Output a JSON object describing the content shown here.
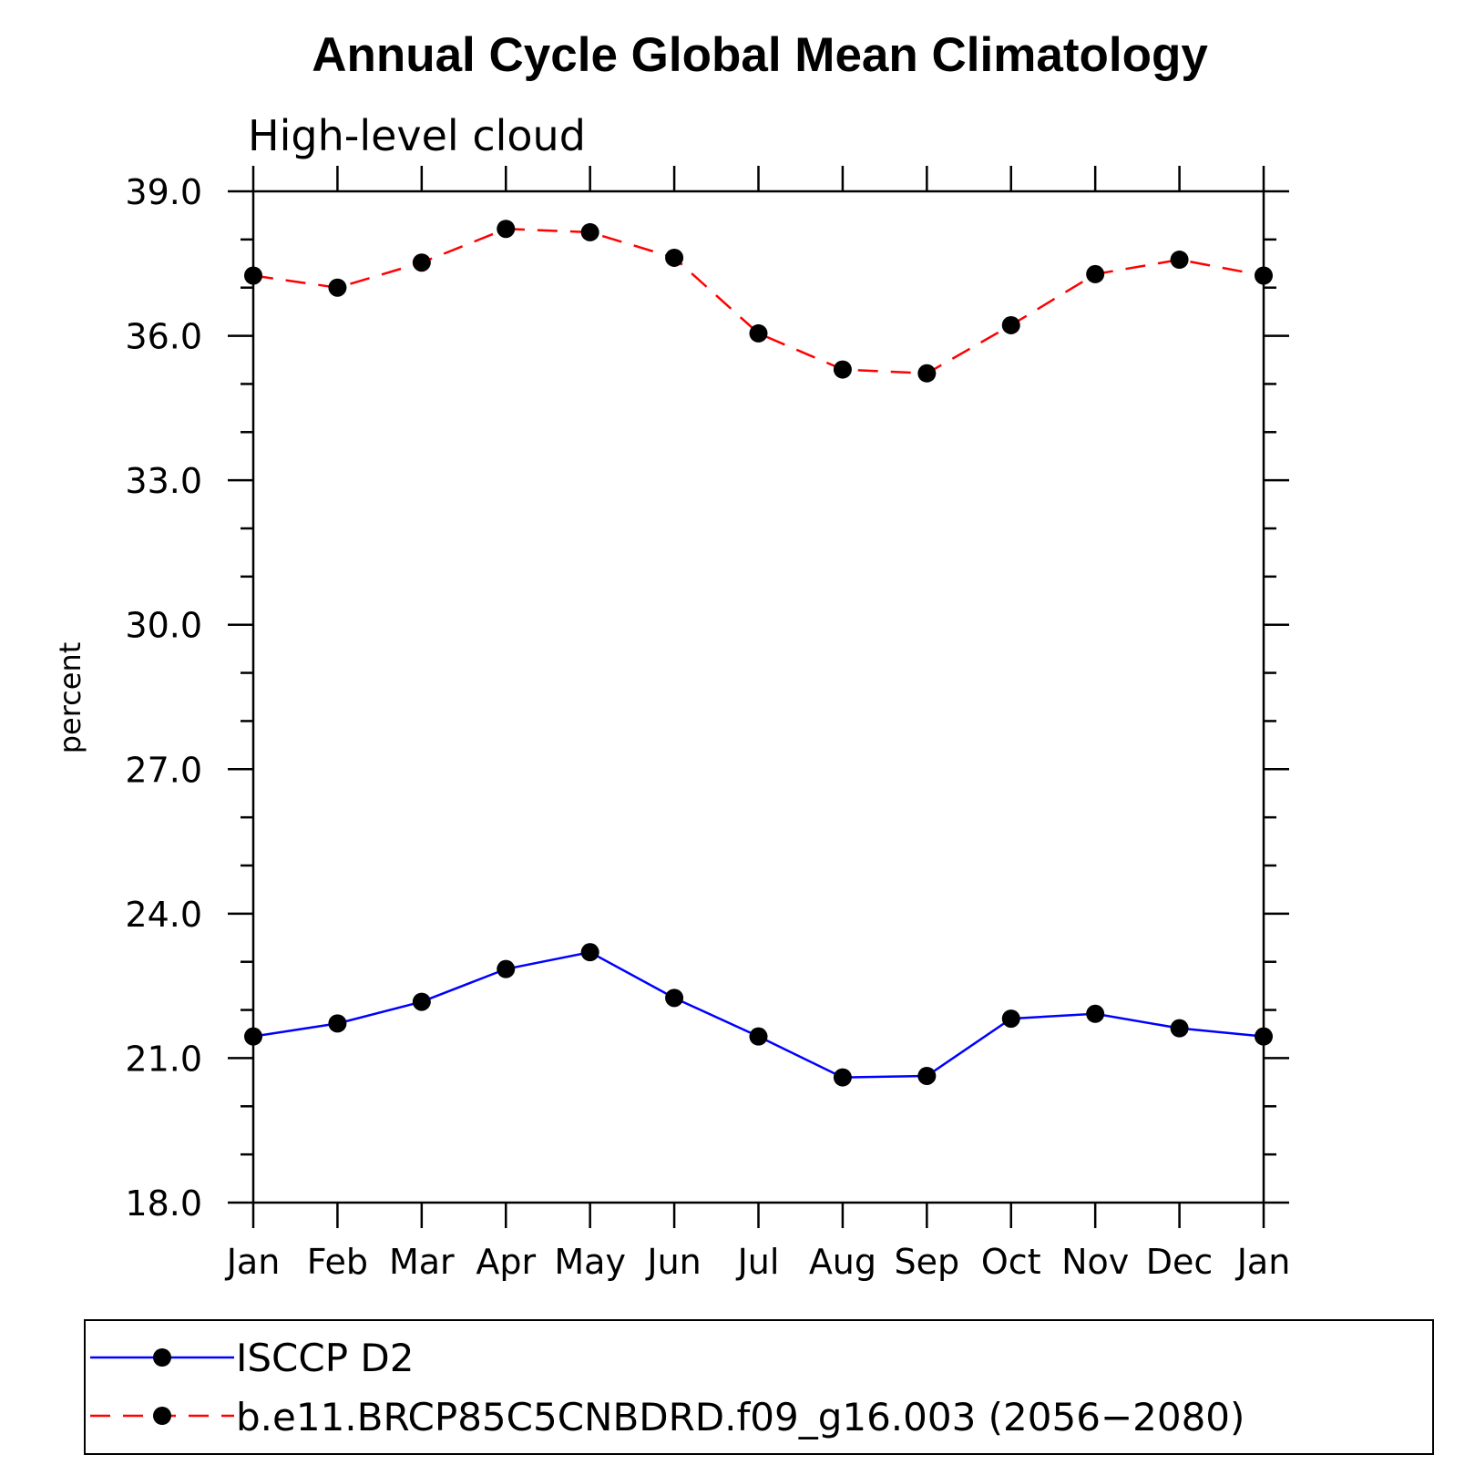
{
  "chart_data": {
    "type": "line",
    "title": "Annual Cycle Global Mean Climatology",
    "subtitle": "High-level cloud",
    "xlabel": "",
    "ylabel": "percent",
    "categories": [
      "Jan",
      "Feb",
      "Mar",
      "Apr",
      "May",
      "Jun",
      "Jul",
      "Aug",
      "Sep",
      "Oct",
      "Nov",
      "Dec",
      "Jan"
    ],
    "yticks": [
      "18.0",
      "21.0",
      "24.0",
      "27.0",
      "30.0",
      "33.0",
      "36.0",
      "39.0"
    ],
    "ylim": [
      18,
      39
    ],
    "grid": false,
    "legend_position": "bottom",
    "series": [
      {
        "name": "ISCCP D2",
        "color": "#0000ff",
        "dash": "solid",
        "marker": "filled-circle",
        "values": [
          21.45,
          21.72,
          22.17,
          22.85,
          23.2,
          22.25,
          21.45,
          20.6,
          20.63,
          21.82,
          21.92,
          21.62,
          21.45
        ]
      },
      {
        "name": "b.e11.BRCP85C5CNBDRD.f09_g16.003 (2056−2080)",
        "color": "#ff0000",
        "dash": "dashed",
        "marker": "filled-circle",
        "values": [
          37.25,
          37.0,
          37.52,
          38.22,
          38.15,
          37.62,
          36.05,
          35.3,
          35.22,
          36.22,
          37.28,
          37.58,
          37.25
        ]
      }
    ]
  }
}
